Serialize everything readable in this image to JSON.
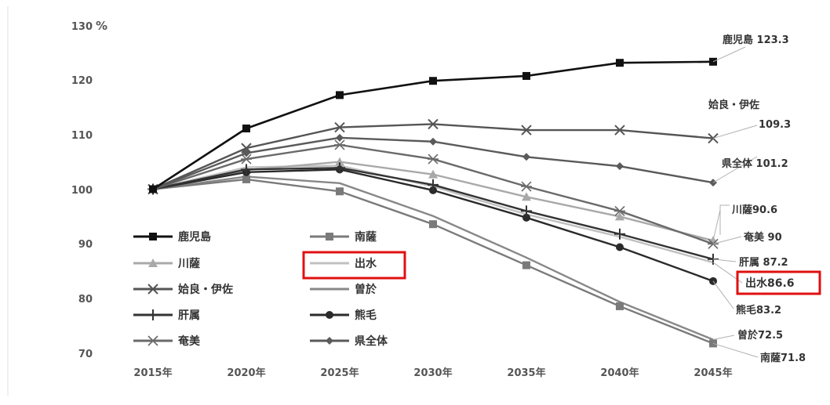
{
  "chart_data": {
    "type": "line",
    "y_unit": "%",
    "ylim": [
      70,
      130
    ],
    "yticks": [
      "130",
      "120",
      "110",
      "100",
      "90",
      "80",
      "70"
    ],
    "categories": [
      "2015年",
      "2020年",
      "2025年",
      "2030年",
      "2035年",
      "2040年",
      "2045年"
    ],
    "grid": false,
    "legend_placement": "bottom-left",
    "series": [
      {
        "name": "鹿児島",
        "values": [
          100,
          111.1,
          117.2,
          119.8,
          120.7,
          123.1,
          123.3
        ],
        "color": "#111111",
        "marker": "square",
        "end_label": "鹿児島 123.3"
      },
      {
        "name": "南薩",
        "values": [
          100,
          101.8,
          99.6,
          93.6,
          86.1,
          78.6,
          71.8
        ],
        "color": "#7a7a7a",
        "marker": "square",
        "end_label": "南薩71.8"
      },
      {
        "name": "川薩",
        "values": [
          100,
          103.5,
          105.0,
          102.7,
          98.6,
          95.0,
          90.6
        ],
        "color": "#a9a9a9",
        "marker": "triangle",
        "end_label": "川薩90.6"
      },
      {
        "name": "出水",
        "values": [
          100,
          104.0,
          104.3,
          100.5,
          95.4,
          91.3,
          86.6
        ],
        "color": "#c0c0c0",
        "marker": "none",
        "end_label": "出水86.6"
      },
      {
        "name": "姶良・伊佐",
        "values": [
          100,
          107.5,
          111.3,
          111.9,
          110.8,
          110.8,
          109.3
        ],
        "color": "#555555",
        "marker": "x",
        "end_label": "109.3"
      },
      {
        "name": "曽於",
        "values": [
          100,
          102.3,
          101.1,
          95.1,
          87.5,
          79.4,
          72.5
        ],
        "color": "#888888",
        "marker": "none",
        "end_label": "曽於72.5"
      },
      {
        "name": "肝属",
        "values": [
          100,
          103.6,
          103.9,
          100.8,
          96.0,
          91.8,
          87.2
        ],
        "color": "#333333",
        "marker": "plus",
        "end_label": "肝属 87.2"
      },
      {
        "name": "熊毛",
        "values": [
          100,
          103.1,
          103.6,
          99.8,
          94.8,
          89.4,
          83.2
        ],
        "color": "#2a2a2a",
        "marker": "circle",
        "end_label": "熊毛83.2"
      },
      {
        "name": "奄美",
        "values": [
          100,
          105.5,
          108.1,
          105.5,
          100.5,
          96.0,
          90.0
        ],
        "color": "#6a6a6a",
        "marker": "star",
        "end_label": "奄美 90"
      },
      {
        "name": "県全体",
        "values": [
          100,
          106.6,
          109.4,
          108.7,
          105.9,
          104.2,
          101.2
        ],
        "color": "#5a5a5a",
        "marker": "diamond",
        "end_label": "県全体 101.2"
      }
    ],
    "extra_labels": {
      "aira_name": "姶良・伊佐"
    },
    "highlight_color": "#e01010"
  }
}
